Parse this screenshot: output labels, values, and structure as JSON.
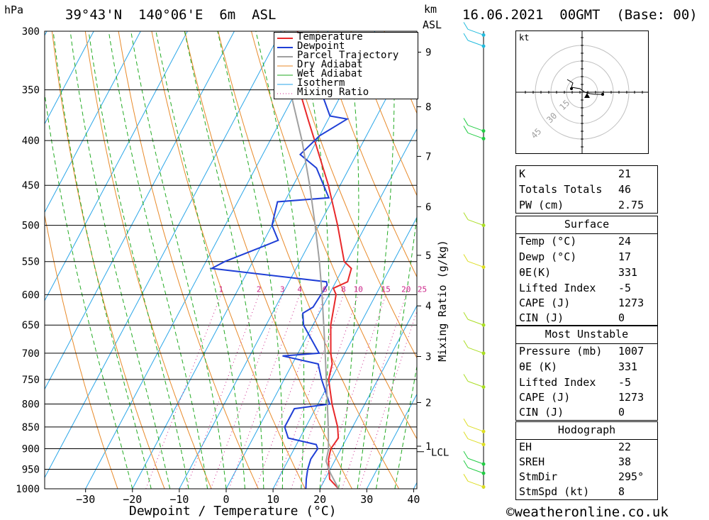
{
  "header": {
    "pressure_unit": "hPa",
    "location": "39°43'N  140°06'E  6m  ASL",
    "km_label": "km",
    "asl_label": "ASL",
    "datetime": "16.06.2021  00GMT  (Base: 00)"
  },
  "chart_data": {
    "type": "line",
    "xlabel": "Dewpoint / Temperature (°C)",
    "ylabel": "hPa",
    "pressure_levels": [
      300,
      350,
      400,
      450,
      500,
      550,
      600,
      650,
      700,
      750,
      800,
      850,
      900,
      950,
      1000
    ],
    "x_ticks": [
      -30,
      -20,
      -10,
      0,
      10,
      20,
      30,
      40
    ],
    "km_ticks": [
      {
        "label": "9",
        "p": 317
      },
      {
        "label": "8",
        "p": 366
      },
      {
        "label": "7",
        "p": 417
      },
      {
        "label": "6",
        "p": 476
      },
      {
        "label": "5",
        "p": 541
      },
      {
        "label": "4",
        "p": 618
      },
      {
        "label": "3",
        "p": 706
      },
      {
        "label": "2",
        "p": 797
      },
      {
        "label": "1",
        "p": 894
      }
    ],
    "lcl_label": "LCL",
    "lcl_pressure": 902,
    "mixing_ratio_axis_label": "Mixing Ratio (g/kg)",
    "mixing_ratio_labels": [
      "1",
      "2",
      "3",
      "4",
      "6",
      "8",
      "10",
      "15",
      "20",
      "25"
    ],
    "legend": [
      "Temperature",
      "Dewpoint",
      "Parcel Trajectory",
      "Dry Adiabat",
      "Wet Adiabat",
      "Isotherm",
      "Mixing Ratio"
    ],
    "series": [
      {
        "name": "Temperature",
        "color": "#e8282a",
        "points": [
          [
            1000,
            24.0
          ],
          [
            975,
            21.0
          ],
          [
            950,
            19.7
          ],
          [
            925,
            18.5
          ],
          [
            900,
            17.8
          ],
          [
            875,
            18.2
          ],
          [
            850,
            16.8
          ],
          [
            800,
            13.0
          ],
          [
            750,
            9.5
          ],
          [
            720,
            8.5
          ],
          [
            700,
            7.0
          ],
          [
            650,
            3.8
          ],
          [
            600,
            1.5
          ],
          [
            590,
            0.2
          ],
          [
            580,
            2.5
          ],
          [
            560,
            1.8
          ],
          [
            550,
            -0.5
          ],
          [
            500,
            -6.0
          ],
          [
            450,
            -12.5
          ],
          [
            400,
            -20.5
          ],
          [
            380,
            -24.0
          ],
          [
            350,
            -29.5
          ],
          [
            330,
            -33.0
          ],
          [
            310,
            -35.0
          ],
          [
            300,
            -36.5
          ]
        ]
      },
      {
        "name": "Dewpoint",
        "color": "#1f3fd6",
        "points": [
          [
            1000,
            17.0
          ],
          [
            975,
            16.0
          ],
          [
            950,
            15.2
          ],
          [
            925,
            14.7
          ],
          [
            900,
            15.0
          ],
          [
            890,
            14.2
          ],
          [
            885,
            12.0
          ],
          [
            875,
            7.5
          ],
          [
            850,
            5.5
          ],
          [
            810,
            5.5
          ],
          [
            805,
            9.0
          ],
          [
            800,
            12.5
          ],
          [
            750,
            8.0
          ],
          [
            720,
            5.5
          ],
          [
            705,
            -3.0
          ],
          [
            700,
            4.5
          ],
          [
            650,
            -2.0
          ],
          [
            630,
            -3.5
          ],
          [
            620,
            -2.0
          ],
          [
            585,
            -1.5
          ],
          [
            580,
            -2.0
          ],
          [
            560,
            -28.0
          ],
          [
            550,
            -26.0
          ],
          [
            530,
            -20.0
          ],
          [
            520,
            -17.0
          ],
          [
            500,
            -20.0
          ],
          [
            490,
            -20.5
          ],
          [
            470,
            -21.5
          ],
          [
            465,
            -11.0
          ],
          [
            430,
            -17.0
          ],
          [
            415,
            -22.0
          ],
          [
            395,
            -20.0
          ],
          [
            378,
            -16.0
          ],
          [
            375,
            -20.0
          ],
          [
            350,
            -25.0
          ],
          [
            340,
            -25.0
          ],
          [
            336,
            -35.0
          ],
          [
            315,
            -36.0
          ],
          [
            310,
            -36.0
          ]
        ]
      },
      {
        "name": "Parcel Trajectory",
        "color": "#a0a0a0",
        "points": [
          [
            1000,
            24.0
          ],
          [
            960,
            20.5
          ],
          [
            930,
            18.2
          ],
          [
            902,
            17.4
          ],
          [
            850,
            14.8
          ],
          [
            800,
            12.0
          ],
          [
            750,
            9.0
          ],
          [
            700,
            5.8
          ],
          [
            650,
            2.3
          ],
          [
            600,
            -1.5
          ],
          [
            550,
            -5.8
          ],
          [
            500,
            -10.8
          ],
          [
            450,
            -16.5
          ],
          [
            400,
            -23.2
          ],
          [
            350,
            -31.5
          ],
          [
            320,
            -37.0
          ],
          [
            310,
            -39.0
          ]
        ]
      }
    ],
    "wind_barbs": [
      {
        "p": 303,
        "color": "#22bbdd"
      },
      {
        "p": 312,
        "color": "#22bbdd"
      },
      {
        "p": 390,
        "color": "#22cc44"
      },
      {
        "p": 398,
        "color": "#22cc44"
      },
      {
        "p": 500,
        "color": "#aadd22"
      },
      {
        "p": 558,
        "color": "#dddd22"
      },
      {
        "p": 650,
        "color": "#aadd22"
      },
      {
        "p": 700,
        "color": "#aadd22"
      },
      {
        "p": 765,
        "color": "#aadd22"
      },
      {
        "p": 860,
        "color": "#dddd22"
      },
      {
        "p": 890,
        "color": "#dddd22"
      },
      {
        "p": 937,
        "color": "#22cc44"
      },
      {
        "p": 960,
        "color": "#22cc44"
      },
      {
        "p": 995,
        "color": "#dddd22"
      }
    ],
    "hodograph": {
      "unit_label": "kt",
      "ring_labels": [
        "15",
        "30",
        "45"
      ]
    }
  },
  "indices": {
    "top": [
      {
        "label": "K",
        "value": "21"
      },
      {
        "label": "Totals Totals",
        "value": "46"
      },
      {
        "label": "PW (cm)",
        "value": "2.75"
      }
    ],
    "surface": {
      "title": "Surface",
      "rows": [
        {
          "label": "Temp (°C)",
          "value": "24"
        },
        {
          "label": "Dewp (°C)",
          "value": "17"
        },
        {
          "label": "θE(K)",
          "value": "331"
        },
        {
          "label": "Lifted Index",
          "value": "-5"
        },
        {
          "label": "CAPE (J)",
          "value": "1273"
        },
        {
          "label": "CIN (J)",
          "value": "0"
        }
      ]
    },
    "most_unstable": {
      "title": "Most Unstable",
      "rows": [
        {
          "label": "Pressure (mb)",
          "value": "1007"
        },
        {
          "label": "θE (K)",
          "value": "331"
        },
        {
          "label": "Lifted Index",
          "value": "-5"
        },
        {
          "label": "CAPE (J)",
          "value": "1273"
        },
        {
          "label": "CIN (J)",
          "value": "0"
        }
      ]
    },
    "hodograph": {
      "title": "Hodograph",
      "rows": [
        {
          "label": "EH",
          "value": "22"
        },
        {
          "label": "SREH",
          "value": "38"
        },
        {
          "label": "StmDir",
          "value": "295°"
        },
        {
          "label": "StmSpd (kt)",
          "value": "8"
        }
      ]
    }
  },
  "footer": {
    "copyright": "©weatheronline.co.uk"
  },
  "colors": {
    "temperature": "#e8282a",
    "dewpoint": "#1f3fd6",
    "parcel": "#a0a0a0",
    "dry_adiabat": "#e88a2a",
    "wet_adiabat": "#22aa22",
    "isotherm": "#2aa6e8",
    "mixing_ratio": "#cc2288"
  }
}
